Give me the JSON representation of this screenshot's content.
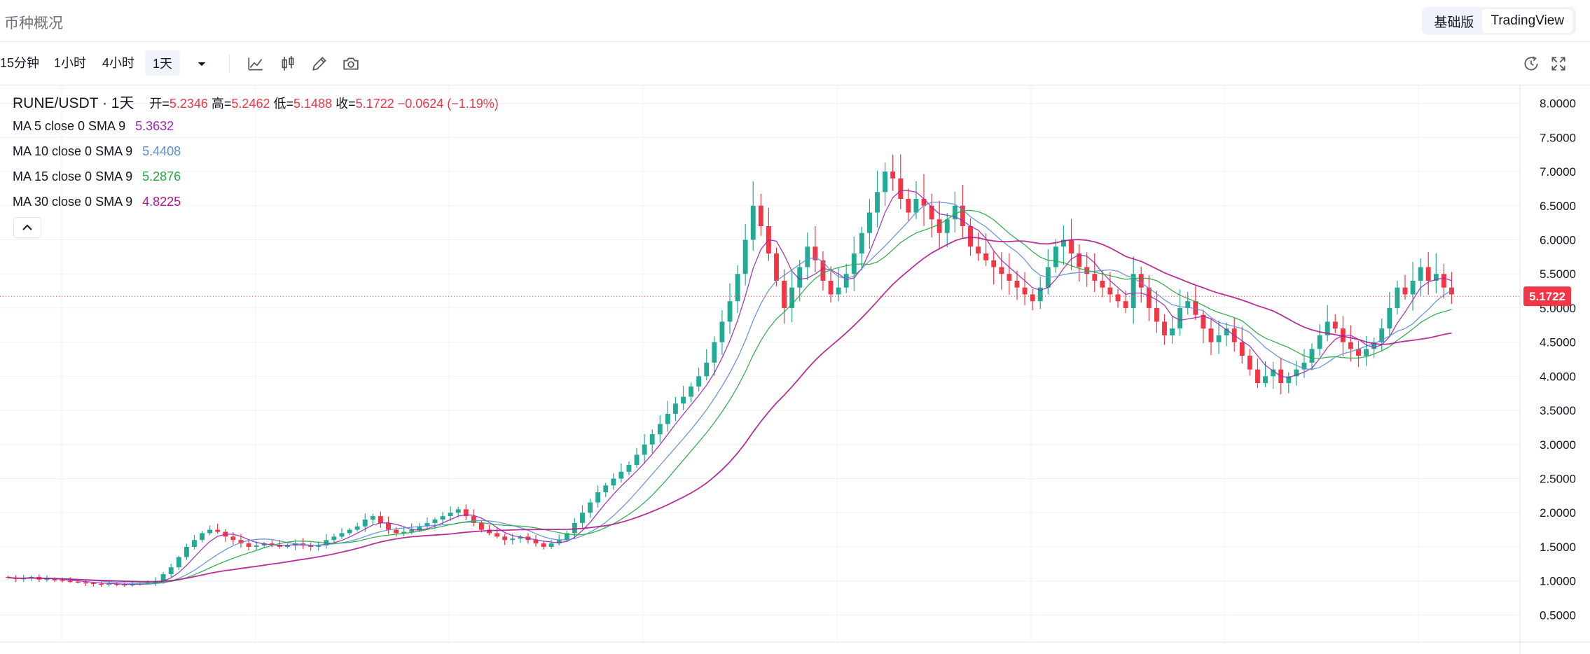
{
  "header": {
    "title": "币种概况",
    "modes": [
      "基础版",
      "TradingView"
    ],
    "active_mode": "TradingView"
  },
  "toolbar": {
    "timeframes": [
      "15分钟",
      "1小时",
      "4小时",
      "1天"
    ],
    "active_timeframe": "1天",
    "icons": [
      "chevron-down-icon",
      "indicator-icon",
      "candle-type-icon",
      "draw-icon",
      "camera-icon",
      "replay-icon",
      "fullscreen-icon"
    ]
  },
  "legend": {
    "symbol": "RUNE/USDT · 1天",
    "open_label": "开=",
    "open": "5.2346",
    "high_label": "高=",
    "high": "5.2462",
    "low_label": "低=",
    "low": "5.1488",
    "close_label": "收=",
    "close": "5.1722",
    "change": "−0.0624 (−1.19%)",
    "ma": [
      {
        "label": "MA 5 close 0 SMA 9",
        "value": "5.3632",
        "color": "#9c27b0"
      },
      {
        "label": "MA 10 close 0 SMA 9",
        "value": "5.4408",
        "color": "#5b8dd6"
      },
      {
        "label": "MA 15 close 0 SMA 9",
        "value": "5.2876",
        "color": "#26a641"
      },
      {
        "label": "MA 30 close 0 SMA 9",
        "value": "4.8225",
        "color": "#b0188f"
      }
    ]
  },
  "chart_data": {
    "type": "candlestick",
    "y_axis": {
      "min": 0.35,
      "max": 8.15,
      "ticks": [
        "8.0000",
        "7.5000",
        "7.0000",
        "6.5000",
        "6.0000",
        "5.5000",
        "5.0000",
        "4.5000",
        "4.0000",
        "3.5000",
        "3.0000",
        "2.5000",
        "2.0000",
        "1.5000",
        "1.0000",
        "0.5000"
      ]
    },
    "last_price": "5.1722",
    "up_color": "#22ab94",
    "down_color": "#f23645",
    "closes": [
      1.05,
      1.03,
      1.04,
      1.06,
      1.02,
      1.03,
      1.01,
      1.0,
      0.99,
      0.98,
      0.97,
      0.96,
      0.95,
      0.96,
      0.95,
      0.94,
      0.95,
      0.96,
      0.97,
      1.0,
      1.1,
      1.2,
      1.35,
      1.5,
      1.6,
      1.7,
      1.75,
      1.72,
      1.65,
      1.6,
      1.55,
      1.5,
      1.52,
      1.55,
      1.53,
      1.5,
      1.52,
      1.55,
      1.53,
      1.5,
      1.52,
      1.6,
      1.65,
      1.7,
      1.75,
      1.8,
      1.9,
      1.95,
      1.85,
      1.75,
      1.7,
      1.72,
      1.75,
      1.8,
      1.85,
      1.9,
      1.95,
      2.0,
      2.05,
      1.95,
      1.85,
      1.75,
      1.7,
      1.65,
      1.6,
      1.62,
      1.65,
      1.6,
      1.55,
      1.5,
      1.55,
      1.6,
      1.7,
      1.85,
      2.0,
      2.15,
      2.3,
      2.4,
      2.5,
      2.6,
      2.7,
      2.85,
      3.0,
      3.15,
      3.3,
      3.45,
      3.6,
      3.7,
      3.85,
      4.0,
      4.2,
      4.5,
      4.8,
      5.1,
      5.5,
      6.0,
      6.5,
      6.2,
      5.8,
      5.4,
      5.0,
      5.3,
      5.6,
      5.9,
      5.7,
      5.4,
      5.2,
      5.3,
      5.5,
      5.8,
      6.1,
      6.4,
      6.7,
      7.0,
      6.9,
      6.6,
      6.4,
      6.6,
      6.5,
      6.3,
      6.1,
      6.3,
      6.5,
      6.2,
      5.9,
      5.8,
      5.7,
      5.6,
      5.5,
      5.4,
      5.3,
      5.2,
      5.1,
      5.3,
      5.6,
      5.9,
      6.0,
      5.8,
      5.6,
      5.5,
      5.4,
      5.3,
      5.2,
      5.1,
      5.0,
      5.5,
      5.3,
      5.0,
      4.8,
      4.6,
      4.7,
      5.0,
      5.1,
      4.9,
      4.7,
      4.5,
      4.6,
      4.7,
      4.5,
      4.3,
      4.1,
      3.9,
      4.0,
      4.1,
      3.9,
      4.0,
      4.1,
      4.2,
      4.4,
      4.6,
      4.8,
      4.7,
      4.5,
      4.4,
      4.3,
      4.4,
      4.5,
      4.7,
      5.0,
      5.3,
      5.2,
      5.4,
      5.6,
      5.4,
      5.5,
      5.3,
      5.2
    ]
  }
}
